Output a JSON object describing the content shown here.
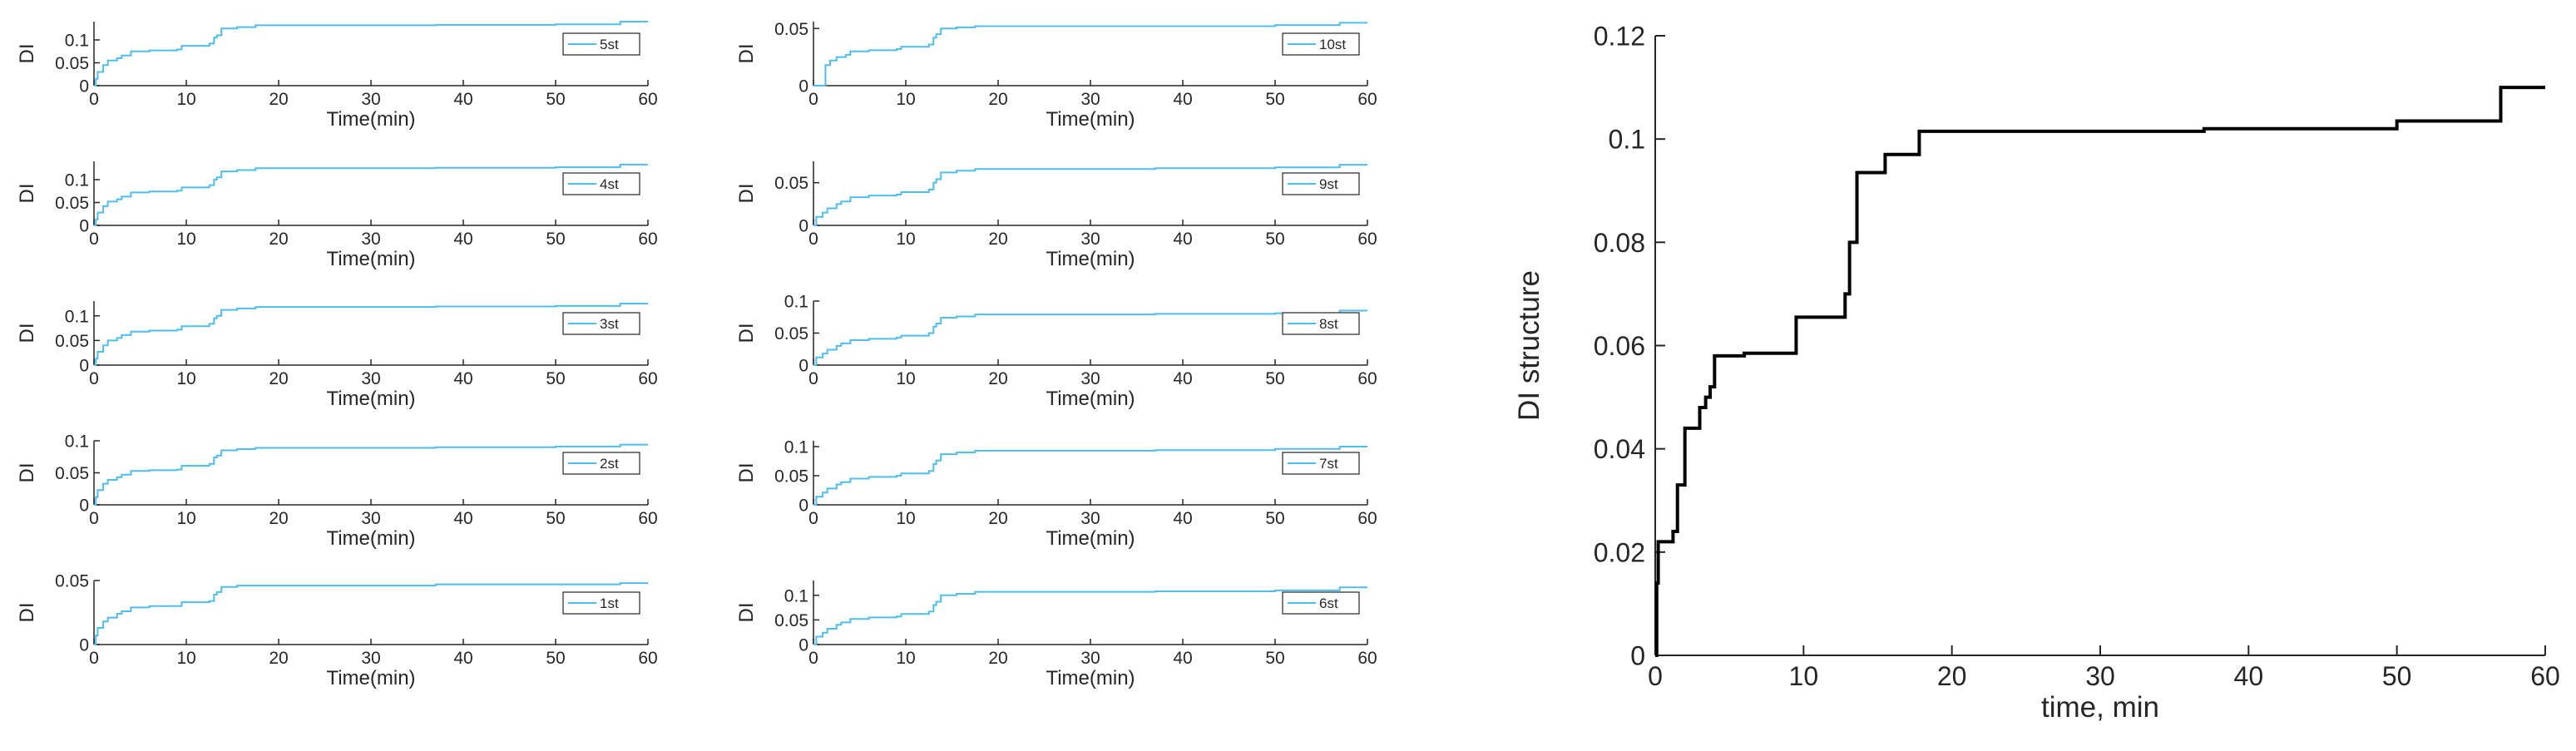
{
  "colors": {
    "series_small": "#4DBEEE",
    "series_big": "#000000",
    "axis": "#262626"
  },
  "chart_data": [
    {
      "type": "line",
      "label": "5st",
      "ylabel": "DI",
      "xlabel": "Time(min)",
      "xlim": [
        0,
        60
      ],
      "ylim": [
        0,
        0.14
      ],
      "xticks": [
        0,
        10,
        20,
        30,
        40,
        50,
        60
      ],
      "yticks": [
        0,
        0.05,
        0.1
      ],
      "ytick_labels": [
        "0",
        "0.05",
        "0.1"
      ],
      "x": [
        0,
        0.2,
        0.4,
        1,
        1.5,
        2.5,
        3,
        4,
        6,
        9,
        9.5,
        12.5,
        13,
        13.3,
        13.8,
        15.5,
        17.5,
        37,
        50,
        57,
        60
      ],
      "y": [
        0,
        0.015,
        0.03,
        0.045,
        0.055,
        0.06,
        0.066,
        0.075,
        0.077,
        0.079,
        0.087,
        0.092,
        0.105,
        0.11,
        0.125,
        0.128,
        0.132,
        0.133,
        0.134,
        0.14,
        0.14
      ]
    },
    {
      "type": "line",
      "label": "4st",
      "ylabel": "DI",
      "xlabel": "Time(min)",
      "xlim": [
        0,
        60
      ],
      "ylim": [
        0,
        0.14
      ],
      "xticks": [
        0,
        10,
        20,
        30,
        40,
        50,
        60
      ],
      "yticks": [
        0,
        0.05,
        0.1
      ],
      "ytick_labels": [
        "0",
        "0.05",
        "0.1"
      ],
      "x": [
        0,
        0.2,
        0.4,
        1,
        1.5,
        2.5,
        3,
        4,
        6,
        9,
        9.5,
        12.5,
        13,
        13.3,
        13.8,
        15.5,
        17.5,
        37,
        50,
        57,
        60
      ],
      "y": [
        0,
        0.013,
        0.028,
        0.042,
        0.052,
        0.057,
        0.063,
        0.072,
        0.074,
        0.076,
        0.083,
        0.088,
        0.1,
        0.105,
        0.118,
        0.121,
        0.125,
        0.126,
        0.127,
        0.133,
        0.133
      ]
    },
    {
      "type": "line",
      "label": "3st",
      "ylabel": "DI",
      "xlabel": "Time(min)",
      "xlim": [
        0,
        60
      ],
      "ylim": [
        0,
        0.13
      ],
      "xticks": [
        0,
        10,
        20,
        30,
        40,
        50,
        60
      ],
      "yticks": [
        0,
        0.05,
        0.1
      ],
      "ytick_labels": [
        "0",
        "0.05",
        "0.1"
      ],
      "x": [
        0,
        0.2,
        0.4,
        1,
        1.5,
        2.5,
        3,
        4,
        6,
        9,
        9.5,
        12.5,
        13,
        13.3,
        13.8,
        15.5,
        17.5,
        37,
        50,
        57,
        60
      ],
      "y": [
        0,
        0.013,
        0.027,
        0.04,
        0.05,
        0.055,
        0.061,
        0.068,
        0.07,
        0.072,
        0.079,
        0.084,
        0.095,
        0.1,
        0.112,
        0.115,
        0.118,
        0.119,
        0.12,
        0.125,
        0.125
      ]
    },
    {
      "type": "line",
      "label": "2st",
      "ylabel": "DI",
      "xlabel": "Time(min)",
      "xlim": [
        0,
        60
      ],
      "ylim": [
        0,
        0.1
      ],
      "xticks": [
        0,
        10,
        20,
        30,
        40,
        50,
        60
      ],
      "yticks": [
        0,
        0.05,
        0.1
      ],
      "ytick_labels": [
        "0",
        "0.05",
        "0.1"
      ],
      "x": [
        0,
        0.2,
        0.4,
        1,
        1.5,
        2.5,
        3,
        4,
        6,
        9,
        9.5,
        12.5,
        13,
        13.3,
        13.8,
        15.5,
        17.5,
        37,
        50,
        57,
        60
      ],
      "y": [
        0,
        0.012,
        0.023,
        0.033,
        0.039,
        0.043,
        0.047,
        0.053,
        0.054,
        0.055,
        0.061,
        0.064,
        0.074,
        0.077,
        0.085,
        0.087,
        0.089,
        0.09,
        0.091,
        0.094,
        0.094
      ]
    },
    {
      "type": "line",
      "label": "1st",
      "ylabel": "DI",
      "xlabel": "Time(min)",
      "xlim": [
        0,
        60
      ],
      "ylim": [
        0,
        0.05
      ],
      "xticks": [
        0,
        10,
        20,
        30,
        40,
        50,
        60
      ],
      "yticks": [
        0,
        0.05
      ],
      "ytick_labels": [
        "0",
        "0.05"
      ],
      "x": [
        0,
        0.2,
        0.4,
        1,
        1.5,
        2.5,
        3,
        4,
        6,
        9,
        9.5,
        12.5,
        13,
        13.3,
        13.8,
        15.5,
        17.5,
        37,
        50,
        57,
        60
      ],
      "y": [
        0,
        0.007,
        0.013,
        0.018,
        0.021,
        0.024,
        0.026,
        0.029,
        0.03,
        0.03,
        0.033,
        0.034,
        0.039,
        0.041,
        0.045,
        0.046,
        0.046,
        0.047,
        0.047,
        0.048,
        0.048
      ]
    },
    {
      "type": "line",
      "label": "10st",
      "ylabel": "DI",
      "xlabel": "Time(min)",
      "xlim": [
        0,
        60
      ],
      "ylim": [
        0,
        0.056
      ],
      "xticks": [
        0,
        10,
        20,
        30,
        40,
        50,
        60
      ],
      "yticks": [
        0,
        0.05
      ],
      "ytick_labels": [
        "0",
        "0.05"
      ],
      "x": [
        0,
        1,
        1.3,
        1.8,
        2.5,
        3.5,
        4,
        6,
        9,
        9.5,
        12.5,
        13,
        13.3,
        13.8,
        15.5,
        17.5,
        37,
        50,
        57,
        60
      ],
      "y": [
        0,
        0,
        0.018,
        0.022,
        0.025,
        0.027,
        0.03,
        0.031,
        0.032,
        0.034,
        0.036,
        0.042,
        0.045,
        0.05,
        0.051,
        0.052,
        0.052,
        0.053,
        0.055,
        0.055
      ]
    },
    {
      "type": "line",
      "label": "9st",
      "ylabel": "DI",
      "xlabel": "Time(min)",
      "xlim": [
        0,
        60
      ],
      "ylim": [
        0,
        0.075
      ],
      "xticks": [
        0,
        10,
        20,
        30,
        40,
        50,
        60
      ],
      "yticks": [
        0,
        0.05
      ],
      "ytick_labels": [
        "0",
        "0.05"
      ],
      "x": [
        0,
        0.3,
        1,
        1.5,
        2.5,
        3,
        4,
        6,
        9,
        9.5,
        12.5,
        13,
        13.3,
        13.8,
        15.5,
        17.5,
        37,
        50,
        57,
        60
      ],
      "y": [
        0,
        0.01,
        0.015,
        0.02,
        0.025,
        0.028,
        0.033,
        0.035,
        0.036,
        0.039,
        0.042,
        0.05,
        0.054,
        0.062,
        0.064,
        0.066,
        0.067,
        0.068,
        0.071,
        0.071
      ]
    },
    {
      "type": "line",
      "label": "8st",
      "ylabel": "DI",
      "xlabel": "Time(min)",
      "xlim": [
        0,
        60
      ],
      "ylim": [
        0,
        0.1
      ],
      "xticks": [
        0,
        10,
        20,
        30,
        40,
        50,
        60
      ],
      "yticks": [
        0,
        0.05,
        0.1
      ],
      "ytick_labels": [
        "0",
        "0.05",
        "0.1"
      ],
      "x": [
        0,
        0.3,
        1,
        1.5,
        2.5,
        3,
        4,
        6,
        9,
        9.5,
        12.5,
        13,
        13.3,
        13.8,
        15.5,
        17.5,
        37,
        50,
        57,
        60
      ],
      "y": [
        0,
        0.012,
        0.018,
        0.024,
        0.03,
        0.034,
        0.039,
        0.041,
        0.043,
        0.046,
        0.05,
        0.06,
        0.065,
        0.074,
        0.076,
        0.079,
        0.08,
        0.081,
        0.085,
        0.085
      ]
    },
    {
      "type": "line",
      "label": "7st",
      "ylabel": "DI",
      "xlabel": "Time(min)",
      "xlim": [
        0,
        60
      ],
      "ylim": [
        0,
        0.11
      ],
      "xticks": [
        0,
        10,
        20,
        30,
        40,
        50,
        60
      ],
      "yticks": [
        0,
        0.05,
        0.1
      ],
      "ytick_labels": [
        "0",
        "0.05",
        "0.1"
      ],
      "x": [
        0,
        0.3,
        1,
        1.5,
        2.5,
        3,
        4,
        6,
        9,
        9.5,
        12.5,
        13,
        13.3,
        13.8,
        15.5,
        17.5,
        37,
        50,
        57,
        60
      ],
      "y": [
        0,
        0.014,
        0.021,
        0.028,
        0.035,
        0.039,
        0.045,
        0.048,
        0.05,
        0.054,
        0.058,
        0.07,
        0.076,
        0.087,
        0.09,
        0.093,
        0.094,
        0.096,
        0.1,
        0.1
      ]
    },
    {
      "type": "line",
      "label": "6st",
      "ylabel": "DI",
      "xlabel": "Time(min)",
      "xlim": [
        0,
        60
      ],
      "ylim": [
        0,
        0.13
      ],
      "xticks": [
        0,
        10,
        20,
        30,
        40,
        50,
        60
      ],
      "yticks": [
        0,
        0.05,
        0.1
      ],
      "ytick_labels": [
        "0",
        "0.05",
        "0.1"
      ],
      "x": [
        0,
        0.3,
        1,
        1.5,
        2.5,
        3,
        4,
        6,
        9,
        9.5,
        12.5,
        13,
        13.3,
        13.8,
        15.5,
        17.5,
        37,
        50,
        57,
        60
      ],
      "y": [
        0,
        0.016,
        0.024,
        0.032,
        0.04,
        0.045,
        0.052,
        0.055,
        0.057,
        0.062,
        0.067,
        0.08,
        0.087,
        0.1,
        0.103,
        0.107,
        0.108,
        0.11,
        0.116,
        0.116
      ]
    },
    {
      "type": "line",
      "label": "",
      "ylabel": "DI structure",
      "xlabel": "time, min",
      "xlim": [
        0,
        60
      ],
      "ylim": [
        0,
        0.12
      ],
      "xticks": [
        0,
        10,
        20,
        30,
        40,
        50,
        60
      ],
      "yticks": [
        0,
        0.02,
        0.04,
        0.06,
        0.08,
        0.1,
        0.12
      ],
      "ytick_labels": [
        "0",
        "0.02",
        "0.04",
        "0.06",
        "0.08",
        "0.1",
        "0.12"
      ],
      "x": [
        0,
        0.1,
        0.2,
        1.2,
        1.5,
        2,
        3,
        3.4,
        3.7,
        4,
        6,
        9.5,
        12.8,
        13.1,
        13.6,
        15.5,
        17.8,
        37,
        50,
        57,
        60
      ],
      "y": [
        0,
        0.014,
        0.022,
        0.024,
        0.033,
        0.044,
        0.048,
        0.05,
        0.052,
        0.058,
        0.0585,
        0.0655,
        0.07,
        0.08,
        0.0935,
        0.097,
        0.1015,
        0.102,
        0.1035,
        0.11,
        0.11
      ]
    }
  ]
}
